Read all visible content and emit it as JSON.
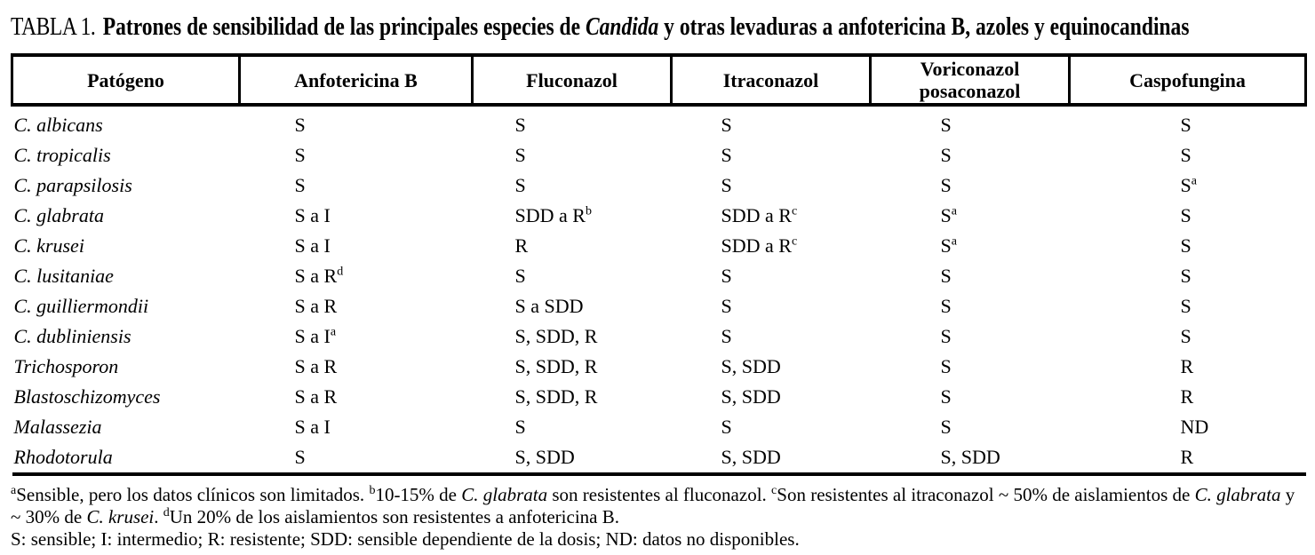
{
  "page": {
    "title_label": "TABLA 1.",
    "title_text": "Patrones de sensibilidad de las principales especies de *Candida* y otras levaduras a anfotericina B, azoles y equinocandinas"
  },
  "table": {
    "headers": [
      "Patógeno",
      "Anfotericina B",
      "Fluconazol",
      "Itraconazol",
      "Voriconazol\nposaconazol",
      "Caspofungina"
    ],
    "rows": [
      {
        "pathogen": "C. albicans",
        "values": [
          "S",
          "S",
          "S",
          "S",
          "S"
        ]
      },
      {
        "pathogen": "C. tropicalis",
        "values": [
          "S",
          "S",
          "S",
          "S",
          "S"
        ]
      },
      {
        "pathogen": "C. parapsilosis",
        "values": [
          "S",
          "S",
          "S",
          "S",
          "S^a^"
        ]
      },
      {
        "pathogen": "C. glabrata",
        "values": [
          "S a I",
          "SDD a R^b^",
          "SDD a R^c^",
          "S^a^",
          "S"
        ]
      },
      {
        "pathogen": "C. krusei",
        "values": [
          "S a I",
          "R",
          "SDD a R^c^",
          "S^a^",
          "S"
        ]
      },
      {
        "pathogen": "C. lusitaniae",
        "values": [
          "S a R^d^",
          "S",
          "S",
          "S",
          "S"
        ]
      },
      {
        "pathogen": "C. guilliermondii",
        "values": [
          "S a R",
          "S a SDD",
          "S",
          "S",
          "S"
        ]
      },
      {
        "pathogen": "C. dubliniensis",
        "values": [
          "S a I^a^",
          "S, SDD, R",
          "S",
          "S",
          "S"
        ]
      },
      {
        "pathogen": "Trichosporon",
        "values": [
          "S a R",
          "S, SDD, R",
          "S, SDD",
          "S",
          "R"
        ]
      },
      {
        "pathogen": "Blastoschizomyces",
        "values": [
          "S a R",
          "S, SDD, R",
          "S, SDD",
          "S",
          "R"
        ]
      },
      {
        "pathogen": "Malassezia",
        "values": [
          "S a I",
          "S",
          "S",
          "S",
          "ND"
        ]
      },
      {
        "pathogen": "Rhodotorula",
        "values": [
          "S",
          "S, SDD",
          "S, SDD",
          "S, SDD",
          "R"
        ]
      }
    ]
  },
  "footnotes": {
    "notes": "^a^Sensible, pero los datos clínicos son limitados. ^b^10-15% de *C. glabrata* son resistentes al fluconazol. ^c^Son resistentes al itraconazol ~ 50% de aislamientos de *C. glabrata* y ~ 30% de *C. krusei*. ^d^Un 20% de los aislamientos son resistentes a anfotericina B.",
    "legend": "S: sensible; I: intermedio; R: resistente; SDD: sensible dependiente de la dosis; ND: datos no disponibles."
  }
}
